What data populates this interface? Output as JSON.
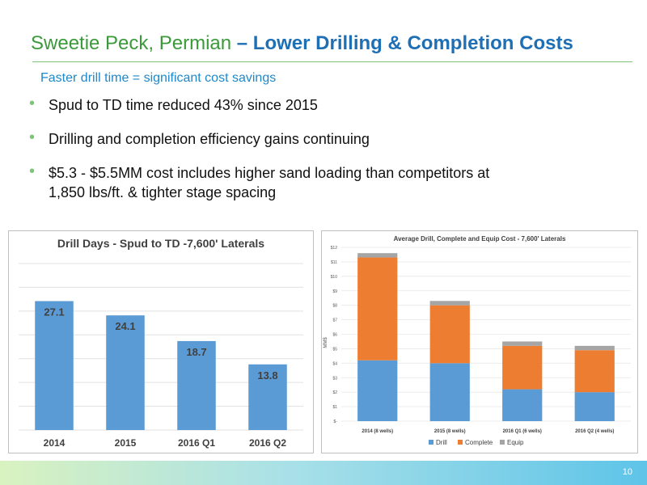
{
  "slide": {
    "title_part1": "Sweetie Peck, Permian ",
    "title_part2": "– Lower Drilling & Completion Costs",
    "subtitle": "Faster drill time = significant cost savings",
    "bullets": [
      {
        "line1": "Spud to TD time reduced 43% since 2015",
        "line2": ""
      },
      {
        "line1": "Drilling and completion efficiency gains continuing",
        "line2": ""
      },
      {
        "line1": "$5.3 - $5.5MM cost includes higher sand loading than competitors at",
        "line2": "1,850 lbs/ft. & tighter stage spacing"
      }
    ],
    "page_number": "10"
  },
  "colors": {
    "green": "#3a9a3a",
    "blue_title": "#1f6fb5",
    "bar_blue": "#5b9bd5",
    "complete_orange": "#ed7d31",
    "equip_gray": "#a5a5a5"
  },
  "chart_data": [
    {
      "type": "bar",
      "title": "Drill Days - Spud to TD -7,600' Laterals",
      "categories": [
        "2014",
        "2015",
        "2016 Q1",
        "2016 Q2"
      ],
      "values": [
        27.1,
        24.1,
        18.7,
        13.8
      ],
      "data_labels": [
        "27.1",
        "24.1",
        "18.7",
        "13.8"
      ],
      "xlabel": "",
      "ylabel": "",
      "ylim": [
        0,
        35
      ],
      "grid": true,
      "legend": "none"
    },
    {
      "type": "bar",
      "stacked": true,
      "title": "Average Drill, Complete and Equip Cost - 7,600' Laterals",
      "categories": [
        "2014 (8 wells)",
        "2015 (8 wells)",
        "2016 Q1 (6 wells)",
        "2016 Q2 (4 wells)"
      ],
      "series": [
        {
          "name": "Drill",
          "values": [
            4.2,
            4.0,
            2.2,
            2.0
          ]
        },
        {
          "name": "Complete",
          "values": [
            7.1,
            4.0,
            3.0,
            2.9
          ]
        },
        {
          "name": "Equip",
          "values": [
            0.3,
            0.3,
            0.3,
            0.3
          ]
        }
      ],
      "ylabel": "MM$",
      "yticks": [
        "$-",
        "$1",
        "$2",
        "$3",
        "$4",
        "$5",
        "$6",
        "$7",
        "$8",
        "$9",
        "$10",
        "$11",
        "$12"
      ],
      "ylim": [
        0,
        12
      ],
      "grid": true,
      "legend": "bottom"
    }
  ]
}
